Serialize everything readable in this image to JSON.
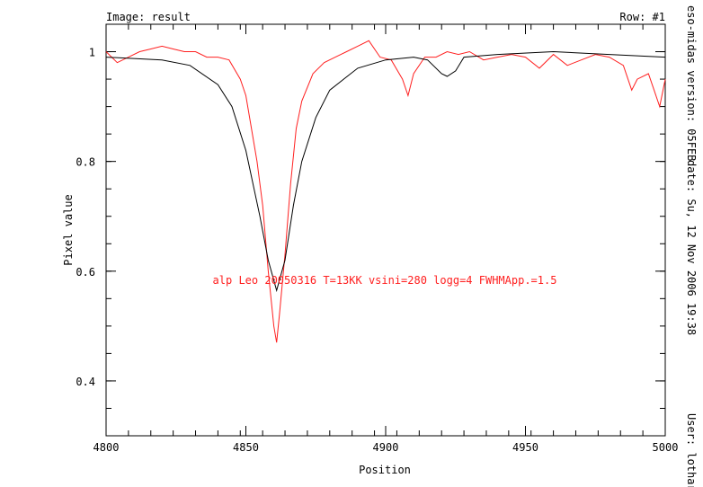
{
  "header": {
    "image_label": "Image: result",
    "row_label": "Row: #1"
  },
  "side": {
    "version": "eso-midas version: 05FEB",
    "date": "date: Su, 12 Nov 2006 19:38",
    "user": "User: lothar"
  },
  "chart_data": {
    "type": "line",
    "xlabel": "Position",
    "ylabel": "Pixel value",
    "xlim": [
      4800,
      5000
    ],
    "ylim": [
      0.3,
      1.05
    ],
    "xticks": [
      4800,
      4850,
      4900,
      4950,
      5000
    ],
    "yticks": [
      0.4,
      0.6,
      0.8,
      1
    ],
    "ytick_labels": [
      "0.4",
      "0.6",
      "0.8",
      "1"
    ],
    "annotation": "alp Leo 20050316 T=13KK vsini=280 logg=4 FWHMApp.=1.5",
    "colors": {
      "observed": "#ff2020",
      "model": "#000000"
    },
    "series": [
      {
        "x": [
          4800,
          4804,
          4808,
          4812,
          4816,
          4820,
          4824,
          4828,
          4832,
          4836,
          4840,
          4844,
          4848,
          4850,
          4852,
          4854,
          4856,
          4858,
          4860,
          4861,
          4862,
          4864,
          4866,
          4868,
          4870,
          4874,
          4878,
          4882,
          4886,
          4890,
          4894,
          4898,
          4902,
          4906,
          4908,
          4910,
          4914,
          4918,
          4922,
          4926,
          4930,
          4935,
          4940,
          4945,
          4950,
          4955,
          4960,
          4965,
          4970,
          4975,
          4980,
          4985,
          4988,
          4990,
          4994,
          4996,
          4998,
          5000
        ],
        "y": [
          1.0,
          0.98,
          0.99,
          1.0,
          1.005,
          1.01,
          1.005,
          1.0,
          1.0,
          0.99,
          0.99,
          0.985,
          0.95,
          0.92,
          0.86,
          0.8,
          0.72,
          0.6,
          0.5,
          0.47,
          0.52,
          0.63,
          0.76,
          0.86,
          0.91,
          0.96,
          0.98,
          0.99,
          1.0,
          1.01,
          1.02,
          0.99,
          0.985,
          0.95,
          0.92,
          0.96,
          0.99,
          0.99,
          1.0,
          0.995,
          1.0,
          0.985,
          0.99,
          0.995,
          0.99,
          0.97,
          0.995,
          0.975,
          0.985,
          0.995,
          0.99,
          0.975,
          0.93,
          0.95,
          0.96,
          0.93,
          0.9,
          0.95
        ]
      },
      {
        "x": [
          4800,
          4820,
          4830,
          4840,
          4845,
          4850,
          4855,
          4858,
          4861,
          4864,
          4867,
          4870,
          4875,
          4880,
          4890,
          4900,
          4910,
          4915,
          4920,
          4922,
          4925,
          4928,
          4940,
          4960,
          4980,
          5000
        ],
        "y": [
          0.99,
          0.985,
          0.975,
          0.94,
          0.9,
          0.82,
          0.7,
          0.62,
          0.565,
          0.62,
          0.72,
          0.8,
          0.88,
          0.93,
          0.97,
          0.985,
          0.99,
          0.985,
          0.96,
          0.955,
          0.965,
          0.99,
          0.995,
          1.0,
          0.995,
          0.99
        ]
      }
    ]
  }
}
